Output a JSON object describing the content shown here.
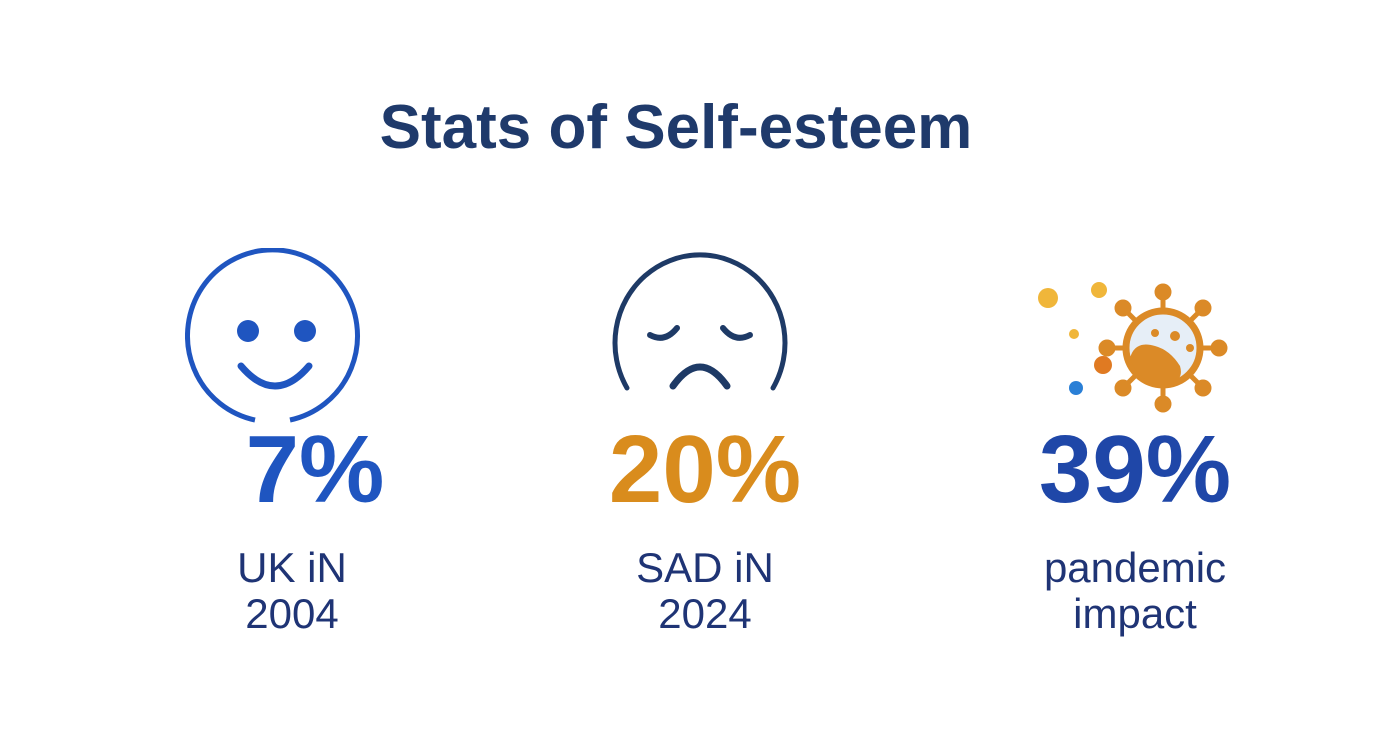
{
  "title": "Stats of Self-esteem",
  "colors": {
    "title": "#1f3a6b",
    "blue": "#1f55c0",
    "navy": "#1e3a66",
    "orange": "#d98c1d",
    "label": "#1f3475"
  },
  "stats": [
    {
      "value": "7%",
      "label_line1": "UK iN",
      "label_line2": "2004",
      "icon": "smiley-face-icon",
      "color": "#1f55c0"
    },
    {
      "value": "20%",
      "label_line1": "SAD iN",
      "label_line2": "2024",
      "icon": "sad-face-icon",
      "color": "#d98c1d"
    },
    {
      "value": "39%",
      "label_line1": "pandemic",
      "label_line2": "impact",
      "icon": "virus-icon",
      "color": "#1f47a8"
    }
  ]
}
